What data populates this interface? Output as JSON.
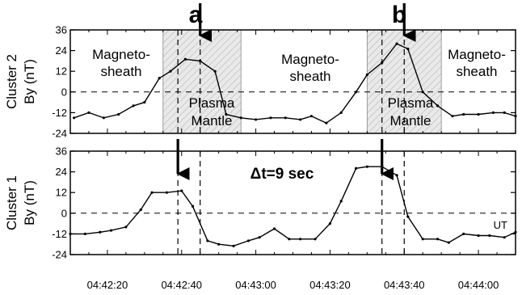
{
  "chart_data": [
    {
      "type": "line",
      "panel": "top",
      "ylabel_line1": "Cluster  2",
      "ylabel_line2": "By (nT)",
      "ylim": [
        -24,
        36
      ],
      "yticks": [
        "36",
        "24",
        "12",
        "0",
        "-12",
        "-24"
      ],
      "ytick_values": [
        36,
        24,
        12,
        0,
        -12,
        -24
      ],
      "x_range": [
        "04:42:10",
        "04:44:10"
      ],
      "series": [
        {
          "x": [
            "04:42:11",
            "04:42:15",
            "04:42:19",
            "04:42:23",
            "04:42:27",
            "04:42:30",
            "04:42:34",
            "04:42:37",
            "04:42:41",
            "04:42:45",
            "04:42:49",
            "04:42:52",
            "04:42:56",
            "04:43:00",
            "04:43:04",
            "04:43:08",
            "04:43:12",
            "04:43:15",
            "04:43:19",
            "04:43:23",
            "04:43:27",
            "04:43:30",
            "04:43:34",
            "04:43:38",
            "04:43:41",
            "04:43:45",
            "04:43:49",
            "04:43:53",
            "04:43:56",
            "04:44:00",
            "04:44:04",
            "04:44:07",
            "04:44:10"
          ],
          "y": [
            -15,
            -12,
            -15,
            -13,
            -8,
            -6,
            8,
            12,
            19,
            18,
            12,
            -13,
            -15,
            -16,
            -15,
            -15,
            -16,
            -14,
            -18,
            -12,
            0,
            10,
            17,
            28,
            25,
            0,
            -8,
            -14,
            -13,
            -13,
            -12,
            -12,
            -14
          ]
        }
      ],
      "regions": [
        {
          "label": "Plasma Mantle",
          "start": "04:42:35",
          "end": "04:42:56"
        },
        {
          "label": "Plasma Mantle",
          "start": "04:43:30",
          "end": "04:43:50"
        }
      ],
      "annotations": [
        {
          "text": "Magneto-",
          "text2": "sheath"
        },
        {
          "text": "Magneto-",
          "text2": "sheath"
        },
        {
          "text": "Magneto-",
          "text2": "sheath"
        },
        {
          "text": "Plasma",
          "text2": "Mantle"
        },
        {
          "text": "Plasma",
          "text2": "Mantle"
        }
      ],
      "markers": [
        {
          "label": "a",
          "time": "04:42:45"
        },
        {
          "label": "b",
          "time": "04:43:40"
        }
      ]
    },
    {
      "type": "line",
      "panel": "bottom",
      "ylabel_line1": "Cluster  1",
      "ylabel_line2": "By (nT)",
      "ylim": [
        -24,
        36
      ],
      "yticks": [
        "36",
        "24",
        "12",
        "0",
        "-12",
        "-24"
      ],
      "ytick_values": [
        36,
        24,
        12,
        0,
        -12,
        -24
      ],
      "xticks": [
        "04:42:20",
        "04:42:40",
        "04:43:00",
        "04:43:20",
        "04:43:40",
        "04:44:00"
      ],
      "x_range": [
        "04:42:10",
        "04:44:10"
      ],
      "series": [
        {
          "x": [
            "04:42:10",
            "04:42:14",
            "04:42:18",
            "04:42:21",
            "04:42:25",
            "04:42:29",
            "04:42:32",
            "04:42:36",
            "04:42:40",
            "04:42:43",
            "04:42:47",
            "04:42:50",
            "04:42:54",
            "04:42:58",
            "04:43:01",
            "04:43:05",
            "04:43:09",
            "04:43:12",
            "04:43:16",
            "04:43:20",
            "04:43:23",
            "04:43:27",
            "04:43:30",
            "04:43:34",
            "04:43:38",
            "04:43:41",
            "04:43:45",
            "04:43:49",
            "04:43:52",
            "04:43:56",
            "04:44:00",
            "04:44:03",
            "04:44:07",
            "04:44:10"
          ],
          "y": [
            -12,
            -12,
            -11,
            -10,
            -8,
            2,
            12,
            12,
            13,
            4,
            -16,
            -18,
            -19,
            -16,
            -14,
            -9,
            -15,
            -15,
            -15,
            -6,
            7,
            26,
            27,
            27,
            22,
            -2,
            -15,
            -15,
            -17,
            -12,
            -13,
            -13,
            -14,
            -11
          ]
        }
      ],
      "arrows": [
        {
          "time": "04:42:39"
        },
        {
          "time": "04:43:34"
        }
      ],
      "delta_label": "Δt=9 sec",
      "ut_label": "UT"
    }
  ]
}
